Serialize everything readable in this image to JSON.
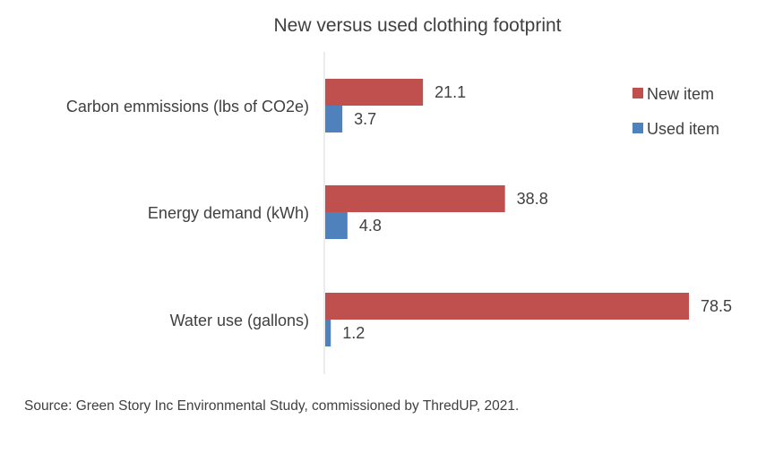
{
  "chart_data": {
    "type": "bar",
    "orientation": "horizontal",
    "title": "New versus used clothing footprint",
    "categories": [
      "Carbon emmissions (lbs of CO2e)",
      "Energy demand (kWh)",
      "Water use (gallons)"
    ],
    "series": [
      {
        "name": "New item",
        "values": [
          21.1,
          38.8,
          78.5
        ],
        "color": "#c0504d"
      },
      {
        "name": "Used item",
        "values": [
          3.7,
          4.8,
          1.2
        ],
        "color": "#4f81bd"
      }
    ],
    "xlim": [
      0,
      80
    ],
    "grid": false,
    "legend_position": "top-right",
    "data_labels": true
  },
  "source": "Source: Green Story Inc Environmental Study, commissioned by ThredUP, 2021."
}
